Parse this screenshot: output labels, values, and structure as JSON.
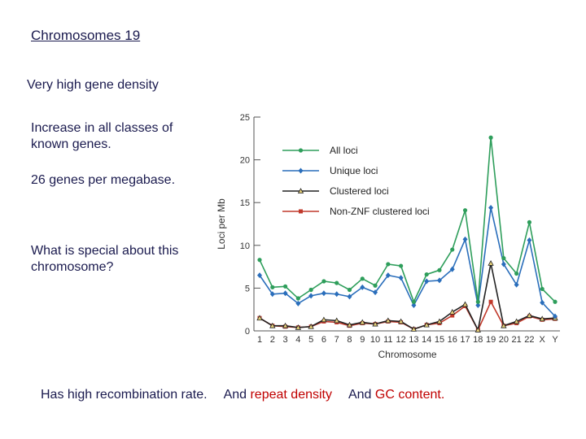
{
  "slide": {
    "title": "Chromosomes 19",
    "points": [
      "Very high gene density",
      "Increase in all classes of known genes.",
      "26 genes per megabase.",
      "What is special about this chromosome?"
    ],
    "bottom": {
      "recomb": "Has high recombination rate.",
      "repeat_and": "And",
      "repeat": " repeat density",
      "gc_and": "And",
      "gc": " GC content."
    }
  },
  "chart_data": {
    "type": "line",
    "title": "",
    "xlabel": "Chromosome",
    "ylabel": "Loci per Mb",
    "ylim": [
      0,
      25
    ],
    "yticks": [
      0,
      5,
      10,
      15,
      20,
      25
    ],
    "categories": [
      "1",
      "2",
      "3",
      "4",
      "5",
      "6",
      "7",
      "8",
      "9",
      "10",
      "11",
      "12",
      "13",
      "14",
      "15",
      "16",
      "17",
      "18",
      "19",
      "20",
      "21",
      "22",
      "X",
      "Y"
    ],
    "legend_position": "top-right",
    "series": [
      {
        "name": "All loci",
        "color": "#2e9e5b",
        "marker": "circle",
        "values": [
          8.3,
          5.1,
          5.2,
          3.8,
          4.8,
          5.8,
          5.6,
          4.8,
          6.1,
          5.3,
          7.8,
          7.6,
          3.4,
          6.6,
          7.1,
          9.5,
          14.1,
          3.4,
          22.6,
          8.5,
          6.7,
          12.7,
          4.9,
          3.4
        ]
      },
      {
        "name": "Unique loci",
        "color": "#2a6ebb",
        "marker": "diamond",
        "values": [
          6.5,
          4.3,
          4.4,
          3.2,
          4.1,
          4.4,
          4.3,
          4.0,
          5.1,
          4.5,
          6.5,
          6.2,
          3.0,
          5.8,
          5.9,
          7.2,
          10.7,
          3.0,
          14.4,
          7.8,
          5.4,
          10.6,
          3.3,
          1.7
        ]
      },
      {
        "name": "Clustered loci",
        "color": "#222222",
        "marker": "triangle",
        "values": [
          1.5,
          0.6,
          0.6,
          0.4,
          0.5,
          1.3,
          1.2,
          0.7,
          1.0,
          0.8,
          1.2,
          1.1,
          0.2,
          0.7,
          1.1,
          2.2,
          3.1,
          0.1,
          7.9,
          0.6,
          1.1,
          1.8,
          1.4,
          1.5
        ]
      },
      {
        "name": "Non-ZNF clustered loci",
        "color": "#c0392b",
        "marker": "square",
        "values": [
          1.5,
          0.6,
          0.5,
          0.4,
          0.5,
          1.1,
          1.0,
          0.6,
          0.9,
          0.8,
          1.1,
          1.0,
          0.2,
          0.7,
          0.9,
          1.8,
          2.9,
          0.1,
          3.4,
          0.6,
          0.9,
          1.7,
          1.3,
          1.4
        ]
      }
    ]
  }
}
